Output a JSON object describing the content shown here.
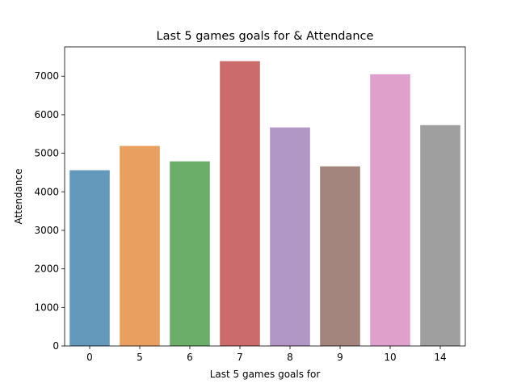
{
  "chart_data": {
    "type": "bar",
    "title": "Last 5 games goals for & Attendance",
    "xlabel": "Last 5 games goals for",
    "ylabel": "Attendance",
    "categories": [
      "0",
      "5",
      "6",
      "7",
      "8",
      "9",
      "10",
      "14"
    ],
    "values": [
      4560,
      5190,
      4790,
      7390,
      5670,
      4660,
      7050,
      5730
    ],
    "ylim": [
      0,
      7760
    ],
    "yticks": [
      0,
      1000,
      2000,
      3000,
      4000,
      5000,
      6000,
      7000
    ],
    "colors": [
      "#6599bc",
      "#e89f5f",
      "#6aae6a",
      "#cc6b6b",
      "#b097c6",
      "#a3857e",
      "#dfa1cb",
      "#9f9f9f"
    ],
    "grid": false,
    "legend": "none"
  }
}
